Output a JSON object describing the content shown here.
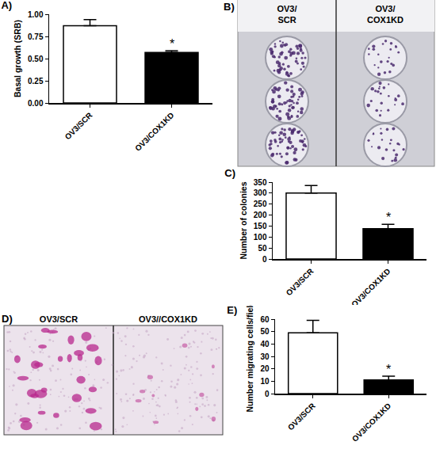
{
  "chart_data": [
    {
      "type": "bar",
      "title": "A)",
      "categories": [
        "OV3/SCR",
        "OV3/COX1KD"
      ],
      "values": [
        0.87,
        0.57
      ],
      "errors": [
        0.07,
        0.02
      ],
      "colors": [
        "#ffffff",
        "#000000"
      ],
      "y_label": "Basal growth (SRB)",
      "ylim": [
        0,
        1
      ],
      "yticks": [
        {
          "value": 0,
          "label": "0.00"
        },
        {
          "value": 0.25,
          "label": "0.25"
        },
        {
          "value": 0.5,
          "label": "0.50"
        },
        {
          "value": 0.75,
          "label": "0.75"
        },
        {
          "value": 1,
          "label": "1.00"
        }
      ],
      "annotations": [
        {
          "text": "*",
          "category": "OV3/COX1KD"
        }
      ],
      "grid": false
    },
    {
      "type": "bar",
      "title": "C)",
      "categories": [
        "OV3/SCR",
        "OV3/COX1KD"
      ],
      "values": [
        300,
        138
      ],
      "errors": [
        35,
        20
      ],
      "colors": [
        "#ffffff",
        "#000000"
      ],
      "y_label": "Number of colonies",
      "ylim": [
        0,
        350
      ],
      "yticks": [
        0,
        50,
        100,
        150,
        200,
        250,
        300,
        350
      ],
      "annotations": [
        {
          "text": "*",
          "category": "OV3/COX1KD"
        }
      ],
      "grid": false
    },
    {
      "type": "bar",
      "title": "E)",
      "categories": [
        "OV3/SCR",
        "OV3/COX1KD"
      ],
      "values": [
        49,
        11
      ],
      "errors": [
        10,
        3
      ],
      "colors": [
        "#ffffff",
        "#000000"
      ],
      "y_label": "Number migrating cells/field",
      "ylim": [
        0,
        60
      ],
      "yticks": [
        0,
        10,
        20,
        30,
        40,
        50,
        60
      ],
      "annotations": [
        {
          "text": "*",
          "category": "OV3/COX1KD"
        }
      ],
      "grid": false
    }
  ],
  "images": [
    {
      "panel": "B)",
      "labels": [
        [
          "OV3/",
          "SCR"
        ],
        [
          "OV3/",
          "COX1KD"
        ]
      ]
    },
    {
      "panel": "D)",
      "labels": [
        [
          "OV3/SCR"
        ],
        [
          "OV3//COX1KD"
        ]
      ]
    }
  ]
}
